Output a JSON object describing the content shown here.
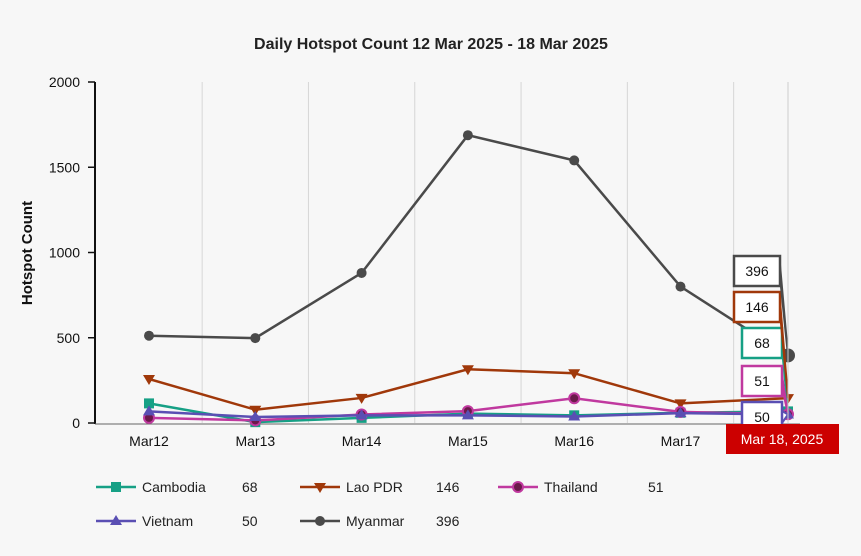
{
  "chart_data": {
    "type": "line",
    "title": "Daily Hotspot Count 12 Mar 2025 - 18 Mar 2025",
    "ylabel": "Hotspot Count",
    "xlabel": "",
    "ylim": [
      0,
      2000
    ],
    "yticks": [
      "0",
      "500",
      "1000",
      "1500",
      "2000"
    ],
    "categories": [
      "Mar12",
      "Mar13",
      "Mar14",
      "Mar15",
      "Mar16",
      "Mar17",
      "Mar 18, 2025"
    ],
    "x_tick_labels": [
      "Mar12",
      "Mar13",
      "Mar14",
      "Mar15",
      "Mar16",
      "Mar17"
    ],
    "hover_label": "Mar 18, 2025",
    "grid": "vertical",
    "legend_position": "bottom",
    "series": [
      {
        "name": "Cambodia",
        "color": "#16a085",
        "marker": "square",
        "values": [
          115,
          5,
          30,
          55,
          45,
          60,
          68
        ],
        "legend_value": "68",
        "callout": "68"
      },
      {
        "name": "Lao PDR",
        "color": "#a0380a",
        "marker": "triangle-down",
        "values": [
          258,
          78,
          147,
          315,
          292,
          115,
          146
        ],
        "legend_value": "146",
        "callout": "146"
      },
      {
        "name": "Thailand",
        "color": "#c0399f",
        "marker": "circle-dark",
        "values": [
          30,
          15,
          50,
          70,
          145,
          65,
          51
        ],
        "legend_value": "51",
        "callout": "51"
      },
      {
        "name": "Vietnam",
        "color": "#5a4fb3",
        "marker": "triangle-up",
        "values": [
          68,
          35,
          45,
          45,
          38,
          58,
          50
        ],
        "legend_value": "50",
        "callout": "50"
      },
      {
        "name": "Myanmar",
        "color": "#4a4a4a",
        "marker": "circle",
        "values": [
          512,
          498,
          880,
          1688,
          1540,
          800,
          396
        ],
        "legend_value": "396",
        "callout": "396"
      }
    ]
  }
}
